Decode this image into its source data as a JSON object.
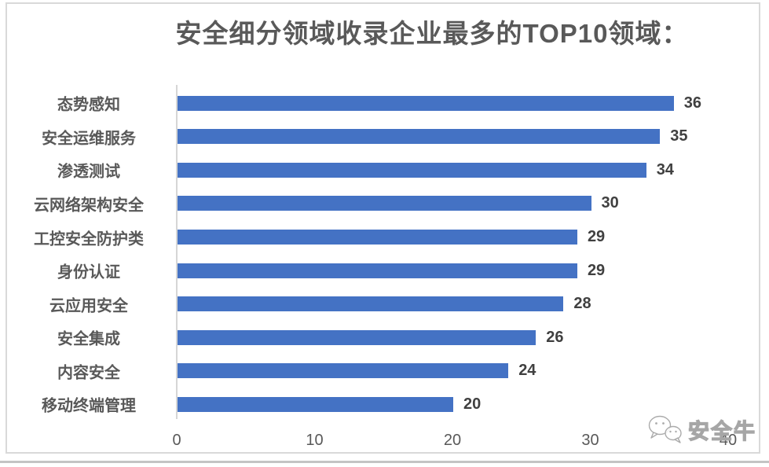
{
  "title": "安全细分领域收录企业最多的TOP10领域：",
  "chart_data": {
    "type": "bar",
    "orientation": "horizontal",
    "title": "安全细分领域收录企业最多的TOP10领域：",
    "categories": [
      "态势感知",
      "安全运维服务",
      "渗透测试",
      "云网络架构安全",
      "工控安全防护类",
      "身份认证",
      "云应用安全",
      "安全集成",
      "内容安全",
      "移动终端管理"
    ],
    "values": [
      36,
      35,
      34,
      30,
      29,
      29,
      28,
      26,
      24,
      20
    ],
    "value_labels_shown": true,
    "xticks": [
      0,
      10,
      20,
      30,
      40
    ],
    "xlim": [
      0,
      40
    ],
    "grid": false,
    "legend": "none",
    "bar_color": "#4472c4"
  },
  "colors": {
    "bar": "#4472c4",
    "title_text": "#595959",
    "category_text": "#595959",
    "value_text": "#404040",
    "tick_text": "#595959",
    "axis_line": "#d6d6d6",
    "frame_border": "#d9d9d9",
    "bottom_rule": "#c4c4c4"
  },
  "watermark": {
    "label": "安全牛",
    "icon": "wechat-icon"
  }
}
